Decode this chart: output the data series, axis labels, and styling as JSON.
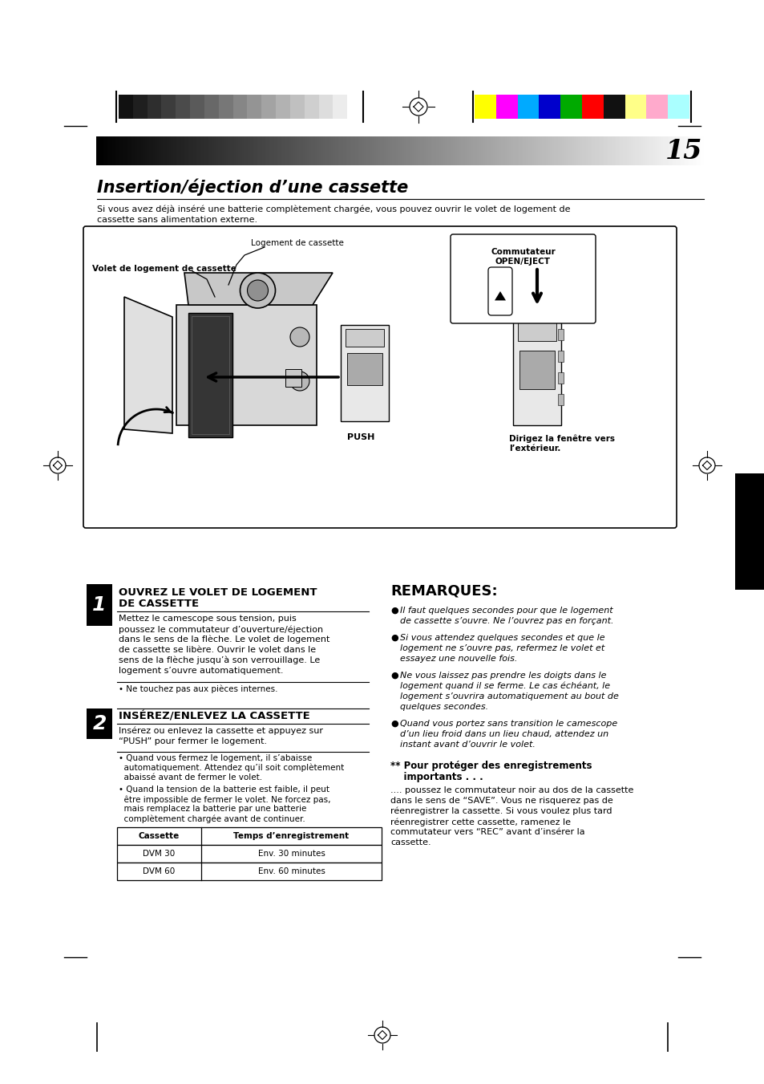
{
  "page_bg": "#ffffff",
  "page_number": "15",
  "title": "Insertion/éjection d’une cassette",
  "intro_text": "Si vous avez déjà inséré une batterie complètement chargée, vous pouvez ouvrir le volet de logement de cassette sans alimentation externe.",
  "gray_steps": [
    "#111111",
    "#1f1f1f",
    "#2e2e2e",
    "#3c3c3c",
    "#4b4b4b",
    "#5a5a5a",
    "#686868",
    "#777777",
    "#868686",
    "#949494",
    "#a3a3a3",
    "#b2b2b2",
    "#c0c0c0",
    "#cfcfcf",
    "#dddddd",
    "#ececec",
    "#ffffff"
  ],
  "color_bars": [
    "#ffff00",
    "#ff00ff",
    "#00aaff",
    "#0000cc",
    "#00aa00",
    "#ff0000",
    "#111111",
    "#ffff88",
    "#ffaacc",
    "#aaffff"
  ],
  "diagram_label1": "Logement de cassette",
  "diagram_label2": "Volet de logement de cassette",
  "diagram_label3": "Commutateur\nOPEN/EJECT",
  "diagram_label4": "PUSH",
  "diagram_label5": "Dirigez la fenêtre vers\nl’extérieur.",
  "section1_num": "1",
  "section1_title": "OUVREZ LE VOLET DE LOGEMENT DE CASSETTE",
  "section1_body": "Mettez le camescope sous tension, puis poussez le commutateur d’ouverture/éjection dans le sens de la flèche. Le volet de logement de cassette se libère. Ouvrir le volet dans le sens de la flèche jusqu’à son verrouillage. Le logement s’ouvre automatiquement.",
  "section1_note": "• Ne touchez pas aux pièces internes.",
  "section2_num": "2",
  "section2_title": "INSÉREZ/ENLEVEZ LA CASSETTE",
  "section2_body": "Insérez ou enlevez la cassette et appuyez sur “PUSH” pour fermer le logement.",
  "section2_note1": "• Quand vous fermez le logement, il s’abaisse automatiquement. Attendez qu’il soit complètement abaissé avant de fermer le volet.",
  "section2_note2": "• Quand la tension de la batterie est faible, il peut être impossible de fermer le volet. Ne forcez pas, mais remplacez la batterie par une batterie complètement chargée avant de continuer.",
  "table_headers": [
    "Cassette",
    "Temps d’enregistrement"
  ],
  "table_rows": [
    [
      "DVM 30",
      "Env. 30 minutes"
    ],
    [
      "DVM 60",
      "Env. 60 minutes"
    ]
  ],
  "remarks_title": "REMARQUES:",
  "remarks_bullets": [
    "Il faut quelques secondes pour que le logement de cassette s’ouvre. Ne l’ouvrez pas en forçant.",
    "Si vous attendez quelques secondes et que le logement ne s’ouvre pas, refermez le volet et essayez une nouvelle fois.",
    "Ne vous laissez pas prendre les doigts dans le logement quand il se ferme. Le cas échéant, le logement s’ouvrira automatiquement au bout de quelques secondes.",
    "Quand vous portez sans transition le camescope d’un lieu froid dans un lieu chaud, attendez un instant avant d’ouvrir le volet."
  ],
  "protect_title": "** Pour protéger des enregistrements\n    importants . . .",
  "protect_body": ".... poussez le commutateur noir au dos de la cassette\ndans le sens de “SAVE”. Vous ne risquerez pas de\nréenregistrer la cassette. Si vous voulez plus tard\nréenregistrer cette cassette, ramenez le\ncommutateur vers “REC” avant d’insérer la\ncassette."
}
